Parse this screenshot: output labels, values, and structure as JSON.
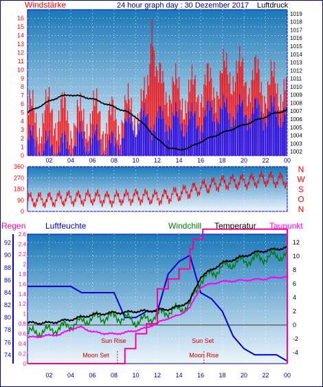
{
  "page_title": "24 hour graph day : 30 Dezember 2017",
  "colors": {
    "sky_top": "#1a78b8",
    "sky_bottom": "#eef6fc",
    "wind_red": "#ff0000",
    "wind_blue": "#0000ff",
    "pressure": "#000000",
    "humidity": "#0000cc",
    "windchill": "#008000",
    "temperature": "#000000",
    "dewpoint": "#ff00ff",
    "rain": "#ff0099",
    "sun_moon": "#cc0000"
  },
  "chart_data": [
    {
      "type": "line",
      "name": "wind-pressure",
      "title": "24 hour graph day : 30 Dezember 2017",
      "left_label": "Windstärke",
      "right_label": "Luftdruck",
      "x_ticks": [
        "02",
        "04",
        "06",
        "08",
        "10",
        "12",
        "14",
        "16",
        "18",
        "20",
        "22",
        "00"
      ],
      "x_tick_hours": [
        2,
        4,
        6,
        8,
        10,
        12,
        14,
        16,
        18,
        20,
        22,
        24
      ],
      "y_ticks": [
        0,
        1,
        2,
        3,
        4,
        5,
        6,
        7,
        8,
        9,
        10,
        11,
        12,
        13,
        14,
        15,
        16
      ],
      "ylim": [
        0,
        17
      ],
      "y2_ticks": [
        1002,
        1003,
        1004,
        1005,
        1006,
        1007,
        1008,
        1009,
        1010,
        1011,
        1012,
        1013,
        1014,
        1015,
        1016,
        1017,
        1018,
        1019
      ],
      "y2lim": [
        1001.5,
        1019.5
      ],
      "series": [
        {
          "role": "gust",
          "color": "#ff0000",
          "x": [
            0,
            1,
            2,
            3,
            4,
            5,
            6,
            7,
            8,
            9,
            10,
            11,
            11.5,
            12,
            13,
            14,
            15,
            16,
            17,
            18,
            19,
            20,
            21,
            22,
            23,
            24
          ],
          "y": [
            5,
            4,
            5,
            5,
            4,
            4,
            5,
            4,
            4,
            5,
            5,
            6,
            16,
            8,
            8,
            7,
            7,
            8,
            8,
            9,
            10,
            9,
            9,
            8,
            8,
            8
          ]
        },
        {
          "role": "wind",
          "color": "#0000ff",
          "x": [
            0,
            1,
            2,
            3,
            4,
            5,
            6,
            7,
            8,
            9,
            10,
            11,
            12,
            13,
            14,
            15,
            16,
            17,
            18,
            19,
            20,
            21,
            22,
            23,
            24
          ],
          "y": [
            2,
            1,
            1,
            1,
            1,
            2,
            2,
            1,
            1,
            3,
            4,
            4,
            4,
            4,
            4,
            4,
            4,
            5,
            5,
            5,
            5,
            5,
            5,
            5,
            5
          ]
        },
        {
          "role": "pressure",
          "color": "#000000",
          "x": [
            0,
            1,
            2,
            3,
            4,
            5,
            6,
            7,
            8,
            9,
            10,
            11,
            12,
            13,
            14,
            15,
            16,
            17,
            18,
            19,
            20,
            21,
            22,
            23,
            24
          ],
          "y": [
            1006.8,
            1007.5,
            1008.2,
            1008.8,
            1009.0,
            1008.8,
            1008.5,
            1008.0,
            1007.5,
            1007.0,
            1006.3,
            1005.0,
            1003.5,
            1002.5,
            1002.2,
            1002.5,
            1003.2,
            1003.8,
            1004.3,
            1004.8,
            1005.3,
            1005.8,
            1006.3,
            1006.8,
            1007.1
          ]
        }
      ]
    },
    {
      "type": "line",
      "name": "wind-direction",
      "right_label": "N W S O N",
      "x_ticks": [
        "02",
        "04",
        "06",
        "08",
        "10",
        "12",
        "14",
        "16",
        "18",
        "20",
        "22",
        "00"
      ],
      "x_tick_hours": [
        2,
        4,
        6,
        8,
        10,
        12,
        14,
        16,
        18,
        20,
        22,
        24
      ],
      "y_ticks": [
        0,
        90,
        180,
        270,
        360
      ],
      "ylim": [
        0,
        360
      ],
      "series": [
        {
          "role": "direction",
          "color": "#ff0000",
          "x": [
            0,
            2,
            4,
            6,
            8,
            10,
            12,
            14,
            16,
            18,
            20,
            22,
            24
          ],
          "y": [
            90,
            95,
            105,
            110,
            100,
            120,
            110,
            140,
            190,
            230,
            240,
            260,
            250
          ]
        }
      ]
    },
    {
      "type": "line",
      "name": "temperature-humidity",
      "labels": {
        "rain": "Regen",
        "humidity": "Luftfeuchte",
        "windchill": "Windchill",
        "temperature": "Temperatur",
        "dewpoint": "Taupunkt"
      },
      "x_ticks": [
        "02",
        "04",
        "06",
        "08",
        "10",
        "12",
        "14",
        "16",
        "18",
        "20",
        "22",
        "00"
      ],
      "x_tick_hours": [
        2,
        4,
        6,
        8,
        10,
        12,
        14,
        16,
        18,
        20,
        22,
        24
      ],
      "rain_ticks": [
        "0",
        "0.2",
        "0.4",
        "0.6",
        "0.8",
        "1",
        "1.2",
        "1.4",
        "1.6",
        "1.8",
        "2",
        "2.2",
        "2.4",
        "2.6"
      ],
      "rain_lim": [
        0,
        2.6
      ],
      "humidity_ticks": [
        74,
        76,
        78,
        80,
        82,
        84,
        86,
        88,
        90,
        92
      ],
      "humidity_lim": [
        72.6,
        93.4
      ],
      "temp_ticks": [
        -4,
        -2,
        0,
        2,
        4,
        6,
        8,
        10,
        12
      ],
      "temp_lim": [
        -5.6,
        13.2
      ],
      "annotations": [
        {
          "text": "Sun Rise",
          "hour": 8.6
        },
        {
          "text": "Sun Set",
          "hour": 16.2
        },
        {
          "text": "Moon Set",
          "hour": 8.3
        },
        {
          "text": "Moon Rise",
          "hour": 16.3
        }
      ],
      "series": [
        {
          "role": "humidity",
          "color": "#0000cc",
          "x": [
            0,
            2,
            4,
            5,
            6,
            8,
            8.5,
            9,
            10,
            11,
            12,
            13,
            14,
            15,
            16,
            17,
            18,
            19,
            20,
            21,
            22,
            23,
            24
          ],
          "y": [
            85,
            85,
            85,
            84,
            84,
            84,
            82,
            80,
            80,
            81,
            81,
            87,
            89,
            90,
            84,
            83,
            81,
            77,
            75,
            74,
            74,
            74,
            73
          ]
        },
        {
          "role": "temperature",
          "color": "#000000",
          "x": [
            0,
            2,
            4,
            6,
            8,
            9,
            10,
            11,
            12,
            13,
            14,
            15,
            16,
            17,
            18,
            19,
            20,
            21,
            22,
            23,
            24
          ],
          "y": [
            0.3,
            0.3,
            0.8,
            1.5,
            1.8,
            1.8,
            2.0,
            2.0,
            2.2,
            2.3,
            2.7,
            3.5,
            7.0,
            8.0,
            9.0,
            9.5,
            10.0,
            10.5,
            10.8,
            11.0,
            11.3
          ]
        },
        {
          "role": "windchill",
          "color": "#008000",
          "x": [
            0,
            2,
            4,
            6,
            8,
            9,
            10,
            11,
            12,
            13,
            14,
            15,
            16,
            17,
            18,
            19,
            20,
            21,
            22,
            23,
            24
          ],
          "y": [
            -1.2,
            -0.8,
            0,
            1.0,
            1.2,
            1.0,
            0.5,
            0.8,
            1.5,
            2.0,
            2.2,
            3.0,
            6.5,
            7.5,
            8.3,
            9.0,
            9.3,
            9.6,
            9.8,
            10.0,
            10.2
          ]
        },
        {
          "role": "dewpoint",
          "color": "#ff00ff",
          "x": [
            0,
            1,
            2,
            3,
            4,
            5,
            6,
            7,
            8,
            9,
            10,
            11,
            12,
            13,
            14,
            15,
            16,
            17,
            18,
            19,
            20,
            21,
            22,
            23,
            24
          ],
          "y": [
            -1.8,
            -1.7,
            -1.5,
            -1.4,
            -0.6,
            -0.3,
            -1.0,
            -1.2,
            -1.3,
            -1.1,
            -0.8,
            -0.4,
            0.3,
            1.0,
            1.4,
            2.5,
            5.5,
            6.0,
            6.3,
            6.4,
            6.5,
            6.6,
            6.7,
            6.9,
            7.0
          ]
        },
        {
          "role": "rain",
          "color": "#ff0099",
          "x": [
            0,
            8.5,
            9,
            10,
            11,
            12,
            13,
            14,
            15,
            15.3,
            16,
            16.2,
            24,
            24
          ],
          "y": [
            0,
            0,
            0.3,
            0.6,
            0.8,
            1.5,
            1.7,
            1.9,
            2.3,
            2.5,
            2.5,
            2.7,
            2.7,
            0
          ]
        }
      ]
    }
  ]
}
